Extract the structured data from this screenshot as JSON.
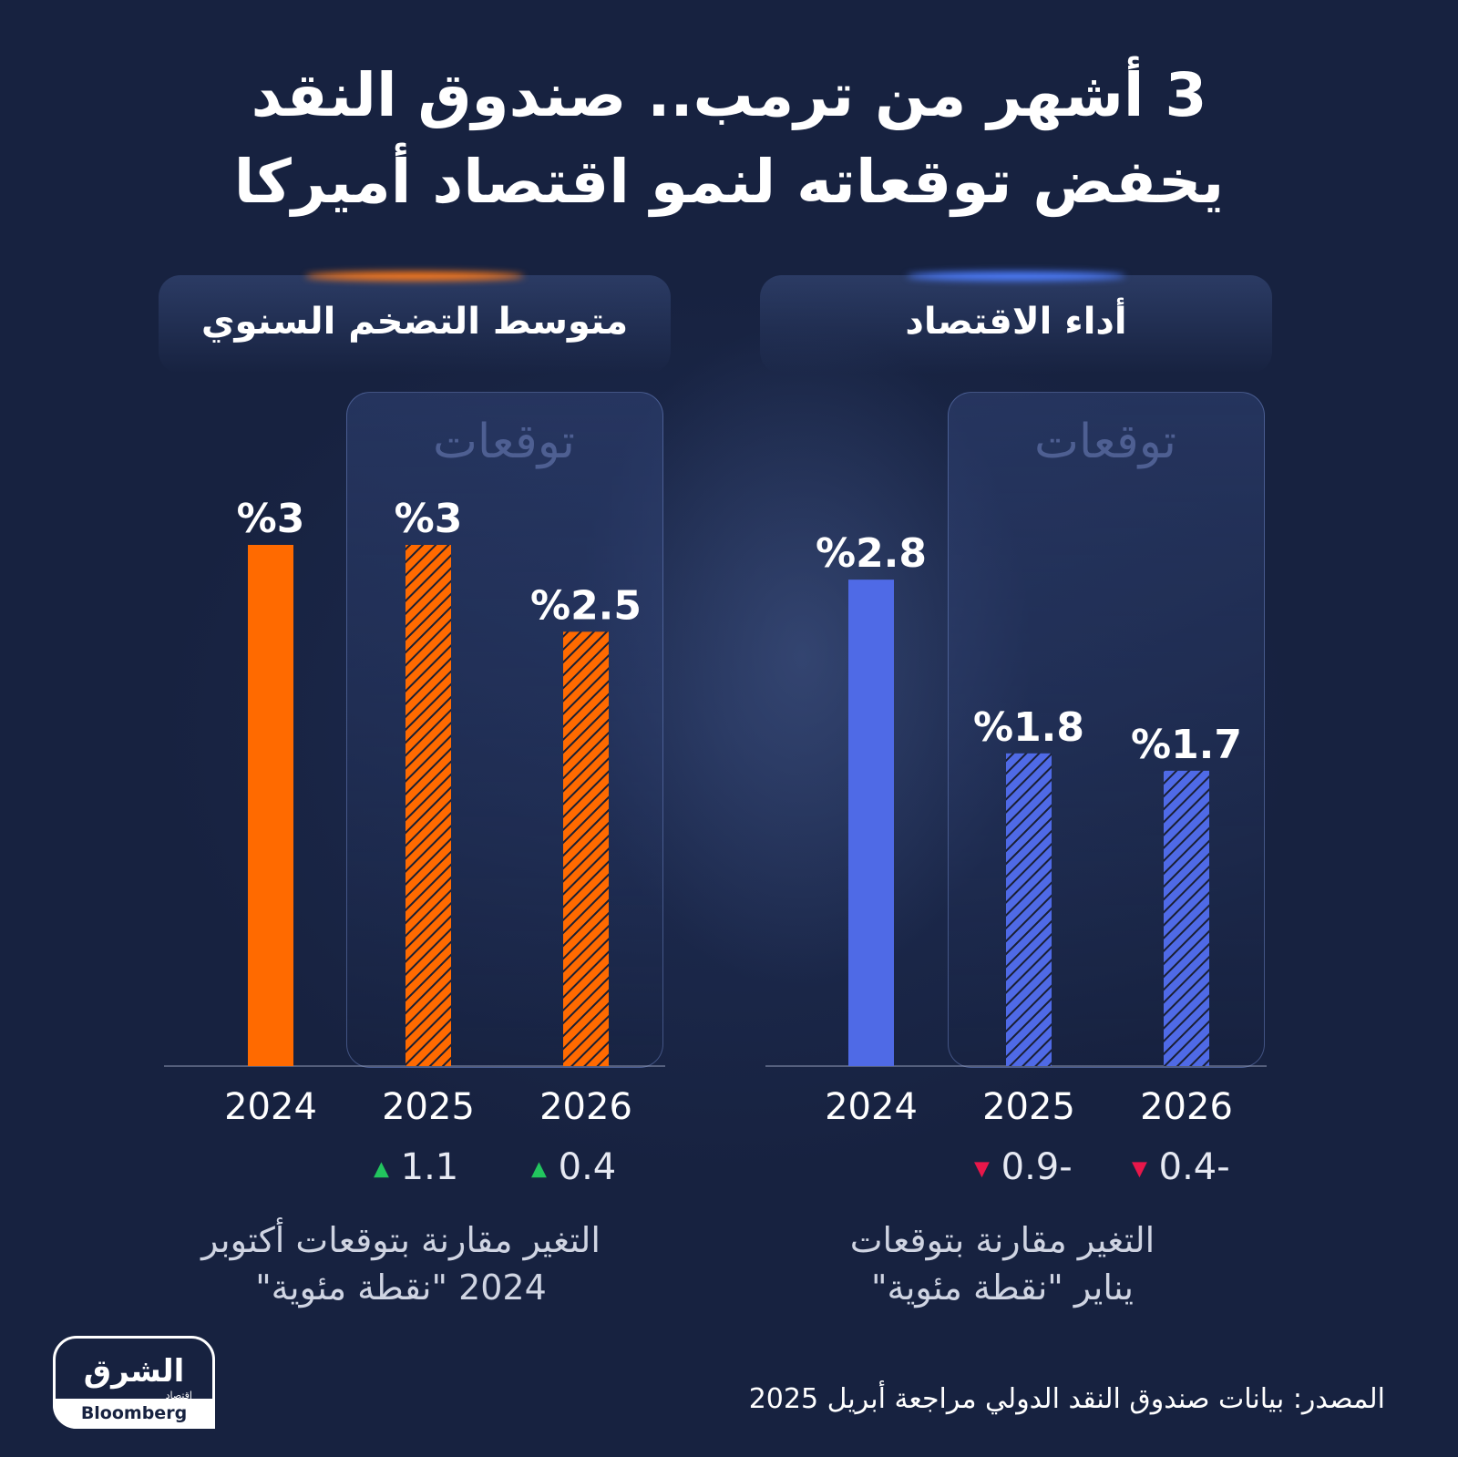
{
  "header": {
    "title_line1": "3 أشهر من ترمب.. صندوق النقد",
    "title_line2": "يخفض توقعاته لنمو اقتصاد أميركا"
  },
  "panels": {
    "left": {
      "title": "متوسط التضخم السنوي",
      "forecast_label": "توقعات",
      "note_line1": "التغير مقارنة بتوقعات أكتوبر",
      "note_line2": "2024 \"نقطة مئوية\""
    },
    "right": {
      "title": "أداء الاقتصاد",
      "forecast_label": "توقعات",
      "note_line1": "التغير مقارنة بتوقعات",
      "note_line2": "يناير \"نقطة مئوية\""
    }
  },
  "colors": {
    "inflation": "#ff6a00",
    "growth": "#4f6ae6",
    "up": "#22c55e",
    "down": "#e8174a"
  },
  "chart_data": [
    {
      "type": "bar",
      "title": "متوسط التضخم السنوي",
      "categories": [
        "2024",
        "2025",
        "2026"
      ],
      "values": [
        3,
        3,
        2.5
      ],
      "value_labels": [
        "%3",
        "%3",
        "%2.5"
      ],
      "forecast": [
        false,
        true,
        true
      ],
      "changes": [
        {
          "year": "2025",
          "label": "1.1",
          "value": 1.1,
          "direction": "up"
        },
        {
          "year": "2026",
          "label": "0.4",
          "value": 0.4,
          "direction": "up"
        }
      ],
      "ylim": [
        0,
        3
      ],
      "grid": false
    },
    {
      "type": "bar",
      "title": "أداء الاقتصاد",
      "categories": [
        "2024",
        "2025",
        "2026"
      ],
      "values": [
        2.8,
        1.8,
        1.7
      ],
      "value_labels": [
        "%2.8",
        "%1.8",
        "%1.7"
      ],
      "forecast": [
        false,
        true,
        true
      ],
      "changes": [
        {
          "year": "2025",
          "label": "0.9-",
          "value": -0.9,
          "direction": "down"
        },
        {
          "year": "2026",
          "label": "0.4-",
          "value": -0.4,
          "direction": "down"
        }
      ],
      "ylim": [
        0,
        3
      ],
      "grid": false
    }
  ],
  "branding": {
    "logo_main": "الشرق",
    "logo_sub": "اقتصاد",
    "logo_partner": "Bloomberg"
  },
  "source": "المصدر: بيانات صندوق النقد الدولي مراجعة أبريل 2025"
}
